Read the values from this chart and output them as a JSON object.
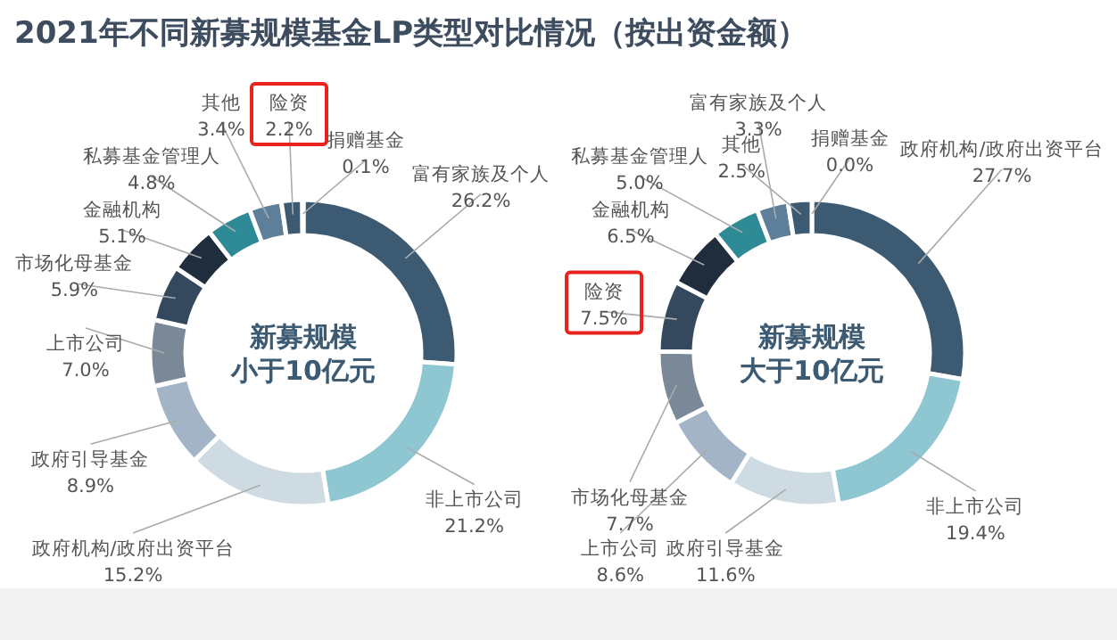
{
  "chart_data": [
    {
      "type": "donut",
      "title": "新募规模",
      "subtitle": "小于10亿元",
      "annotations": [
        "2021年不同新募规模基金LP类型对比情况（按出资金额）"
      ],
      "categories": [
        "富有家族及个人",
        "非上市公司",
        "政府机构/政府出资平台",
        "政府引导基金",
        "上市公司",
        "市场化母基金",
        "金融机构",
        "私募基金管理人",
        "其他",
        "险资",
        "捐赠基金"
      ],
      "values": [
        26.2,
        21.2,
        15.2,
        8.9,
        7.0,
        5.9,
        5.1,
        4.8,
        3.4,
        2.2,
        0.1
      ],
      "value_labels": [
        "26.2%",
        "21.2%",
        "15.2%",
        "8.9%",
        "7.0%",
        "5.9%",
        "5.1%",
        "4.8%",
        "3.4%",
        "2.2%",
        "0.1%"
      ],
      "colors": [
        "#3d5a73",
        "#8ec6d2",
        "#cfdbe3",
        "#a3b4c6",
        "#7b8897",
        "#34495e",
        "#1f2d3d",
        "#2e8b96",
        "#5e7f99",
        "#3d5a73",
        "#8ec6d2"
      ]
    },
    {
      "type": "donut",
      "title": "新募规模",
      "subtitle": "大于10亿元",
      "categories": [
        "政府机构/政府出资平台",
        "非上市公司",
        "政府引导基金",
        "上市公司",
        "市场化母基金",
        "险资",
        "金融机构",
        "私募基金管理人",
        "富有家族及个人",
        "其他",
        "捐赠基金"
      ],
      "values": [
        27.7,
        19.4,
        11.6,
        8.6,
        7.7,
        7.5,
        6.5,
        5.0,
        3.3,
        2.5,
        0.0
      ],
      "value_labels": [
        "27.7%",
        "19.4%",
        "11.6%",
        "8.6%",
        "7.7%",
        "7.5%",
        "6.5%",
        "5.0%",
        "3.3%",
        "2.5%",
        "0.0%"
      ],
      "colors": [
        "#3d5a73",
        "#8ec6d2",
        "#cfdbe3",
        "#a3b4c6",
        "#7b8897",
        "#34495e",
        "#1f2d3d",
        "#2e8b96",
        "#5e7f99",
        "#3d5a73",
        null
      ]
    }
  ]
}
